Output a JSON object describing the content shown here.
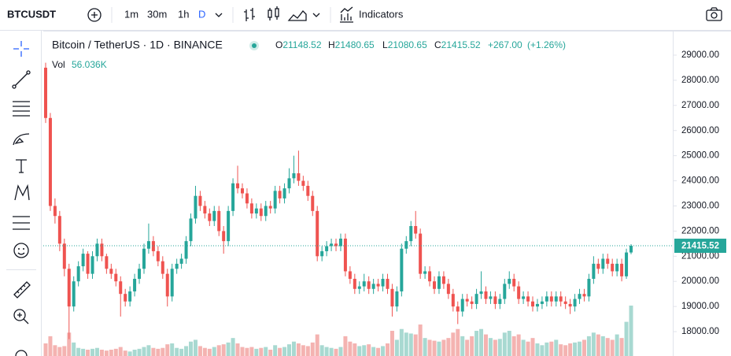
{
  "toolbar": {
    "symbol": "BTCUSDT",
    "intervals": [
      "1m",
      "30m",
      "1h",
      "D"
    ],
    "indicators": "Indicators"
  },
  "chart_data": {
    "type": "candlestick",
    "title": "Bitcoin / TetherUS · 1D · BINANCE",
    "legend_labels": {
      "open": "O",
      "high": "H",
      "low": "L",
      "close": "C"
    },
    "change": {
      "value": 267,
      "label": "+267.00"
    },
    "change_pct": {
      "value": 1.26,
      "label": "(+1.26%)"
    },
    "volume_title": "Vol",
    "volume_readout": "56.036K",
    "up_color": "#26a69a",
    "down_color": "#ef5350",
    "volume_up_color": "#a8d9d1",
    "volume_down_color": "#f4b3b1",
    "ylim": [
      17030,
      29940
    ],
    "yticks": [
      {
        "value": 18000,
        "label": "18000.00"
      },
      {
        "value": 19000,
        "label": "19000.00"
      },
      {
        "value": 20000,
        "label": "20000.00"
      },
      {
        "value": 21000,
        "label": "21000.00"
      },
      {
        "value": 22000,
        "label": "22000.00"
      },
      {
        "value": 23000,
        "label": "23000.00"
      },
      {
        "value": 24000,
        "label": "24000.00"
      },
      {
        "value": 25000,
        "label": "25000.00"
      },
      {
        "value": 26000,
        "label": "26000.00"
      },
      {
        "value": 27000,
        "label": "27000.00"
      },
      {
        "value": 28000,
        "label": "28000.00"
      },
      {
        "value": 29000,
        "label": "29000.00"
      }
    ],
    "ohlc": [
      [
        28500,
        28700,
        26300,
        26500
      ],
      [
        26500,
        26700,
        22800,
        23000
      ],
      [
        23000,
        23300,
        22300,
        22600
      ],
      [
        22600,
        22800,
        21200,
        21500
      ],
      [
        21500,
        21700,
        20200,
        20500
      ],
      [
        20500,
        20700,
        17700,
        19000
      ],
      [
        19000,
        20200,
        18800,
        20000
      ],
      [
        20000,
        20800,
        19800,
        20600
      ],
      [
        20600,
        21300,
        20400,
        21100
      ],
      [
        21100,
        21200,
        20100,
        20300
      ],
      [
        20300,
        21200,
        20100,
        21000
      ],
      [
        21000,
        21700,
        20800,
        21500
      ],
      [
        21500,
        21700,
        20800,
        21000
      ],
      [
        21000,
        21100,
        20300,
        20500
      ],
      [
        20500,
        20700,
        20100,
        20300
      ],
      [
        20300,
        20500,
        19800,
        20000
      ],
      [
        20000,
        20200,
        18600,
        19500
      ],
      [
        19500,
        19700,
        19000,
        19200
      ],
      [
        19200,
        19800,
        19000,
        19600
      ],
      [
        19600,
        20300,
        19400,
        20100
      ],
      [
        20100,
        20700,
        19900,
        20500
      ],
      [
        20500,
        21500,
        20300,
        21300
      ],
      [
        21300,
        22300,
        21100,
        21600
      ],
      [
        21600,
        21800,
        21000,
        21200
      ],
      [
        21200,
        21400,
        20600,
        20800
      ],
      [
        20800,
        21000,
        20100,
        20300
      ],
      [
        20300,
        20500,
        19000,
        19400
      ],
      [
        19400,
        20700,
        19200,
        20500
      ],
      [
        20500,
        20900,
        20300,
        20700
      ],
      [
        20700,
        21100,
        20500,
        20900
      ],
      [
        20900,
        21800,
        20700,
        21600
      ],
      [
        21600,
        22700,
        21400,
        22500
      ],
      [
        22500,
        23800,
        22300,
        23400
      ],
      [
        23400,
        23600,
        22800,
        23000
      ],
      [
        23000,
        23200,
        22500,
        22700
      ],
      [
        22700,
        22900,
        22200,
        22400
      ],
      [
        22400,
        23000,
        22200,
        22800
      ],
      [
        22800,
        23000,
        21800,
        22000
      ],
      [
        22000,
        22200,
        21100,
        21600
      ],
      [
        21600,
        23000,
        21400,
        22800
      ],
      [
        22800,
        24100,
        22600,
        23900
      ],
      [
        23900,
        24600,
        23500,
        23700
      ],
      [
        23700,
        23900,
        23300,
        23500
      ],
      [
        23500,
        23700,
        22900,
        23100
      ],
      [
        23100,
        23300,
        22500,
        22700
      ],
      [
        22700,
        23100,
        22500,
        22900
      ],
      [
        22900,
        23100,
        22400,
        22600
      ],
      [
        22600,
        23200,
        22400,
        23000
      ],
      [
        23000,
        23200,
        22700,
        22900
      ],
      [
        22900,
        23800,
        22700,
        23600
      ],
      [
        23600,
        23800,
        23100,
        23300
      ],
      [
        23300,
        23900,
        23100,
        23700
      ],
      [
        23700,
        24500,
        23500,
        24100
      ],
      [
        24100,
        25000,
        23900,
        24300
      ],
      [
        24300,
        25200,
        23800,
        24000
      ],
      [
        24000,
        24200,
        23600,
        23800
      ],
      [
        23800,
        24000,
        23200,
        23400
      ],
      [
        23400,
        23600,
        22600,
        22800
      ],
      [
        22800,
        23000,
        20800,
        21000
      ],
      [
        21000,
        21400,
        20800,
        21200
      ],
      [
        21200,
        21600,
        21000,
        21400
      ],
      [
        21400,
        21700,
        21200,
        21500
      ],
      [
        21500,
        21700,
        21200,
        21400
      ],
      [
        21400,
        21900,
        21200,
        21700
      ],
      [
        21700,
        21900,
        20200,
        20400
      ],
      [
        20400,
        20600,
        19900,
        20100
      ],
      [
        20100,
        20300,
        19500,
        19700
      ],
      [
        19700,
        20000,
        19500,
        19800
      ],
      [
        19800,
        20300,
        19600,
        20000
      ],
      [
        20000,
        20200,
        19500,
        19700
      ],
      [
        19700,
        20100,
        19500,
        19900
      ],
      [
        19900,
        20100,
        19600,
        19800
      ],
      [
        19800,
        20300,
        19600,
        20100
      ],
      [
        20100,
        20300,
        19500,
        19700
      ],
      [
        19700,
        19900,
        18600,
        19000
      ],
      [
        19000,
        19800,
        18800,
        19600
      ],
      [
        19600,
        21500,
        19400,
        21300
      ],
      [
        21300,
        21800,
        21100,
        21600
      ],
      [
        21600,
        22400,
        21400,
        22200
      ],
      [
        22200,
        22800,
        21700,
        21900
      ],
      [
        21900,
        22100,
        20100,
        20300
      ],
      [
        20300,
        20600,
        20100,
        20400
      ],
      [
        20400,
        20600,
        19800,
        20000
      ],
      [
        20000,
        20200,
        19500,
        19700
      ],
      [
        19700,
        20400,
        19500,
        20200
      ],
      [
        20200,
        20400,
        19700,
        19900
      ],
      [
        19900,
        20100,
        19300,
        19500
      ],
      [
        19500,
        19700,
        18800,
        19000
      ],
      [
        19000,
        19200,
        18300,
        18800
      ],
      [
        18800,
        19500,
        18600,
        19300
      ],
      [
        19300,
        19500,
        19000,
        19200
      ],
      [
        19200,
        19400,
        18900,
        19100
      ],
      [
        19100,
        19700,
        18900,
        19500
      ],
      [
        19500,
        20400,
        19300,
        19600
      ],
      [
        19600,
        19800,
        19100,
        19300
      ],
      [
        19300,
        19600,
        19100,
        19400
      ],
      [
        19400,
        19600,
        18900,
        19100
      ],
      [
        19100,
        19500,
        18900,
        19300
      ],
      [
        19300,
        20100,
        19100,
        19900
      ],
      [
        19900,
        20400,
        19700,
        20100
      ],
      [
        20100,
        20300,
        19600,
        19800
      ],
      [
        19800,
        20000,
        19100,
        19300
      ],
      [
        19300,
        19600,
        19100,
        19400
      ],
      [
        19400,
        19600,
        19000,
        19200
      ],
      [
        19200,
        19400,
        18800,
        19000
      ],
      [
        19000,
        19300,
        18800,
        19100
      ],
      [
        19100,
        19400,
        18900,
        19200
      ],
      [
        19200,
        19600,
        19000,
        19400
      ],
      [
        19400,
        19600,
        19000,
        19200
      ],
      [
        19200,
        19600,
        19000,
        19400
      ],
      [
        19400,
        19600,
        19000,
        19200
      ],
      [
        19200,
        19400,
        18900,
        19100
      ],
      [
        19100,
        19300,
        18700,
        19000
      ],
      [
        19000,
        19500,
        18800,
        19300
      ],
      [
        19300,
        19700,
        19100,
        19500
      ],
      [
        19500,
        19700,
        19200,
        19400
      ],
      [
        19400,
        20300,
        19200,
        20100
      ],
      [
        20100,
        21000,
        19900,
        20700
      ],
      [
        20700,
        20900,
        20300,
        20500
      ],
      [
        20500,
        21100,
        20300,
        20900
      ],
      [
        20900,
        21100,
        20500,
        20700
      ],
      [
        20700,
        20900,
        20200,
        20400
      ],
      [
        20400,
        20900,
        20200,
        20700
      ],
      [
        20700,
        20900,
        20000,
        20200
      ],
      [
        20200,
        21300,
        20100,
        21148.52
      ],
      [
        21148.52,
        21480.65,
        21080.65,
        21415.52
      ]
    ],
    "volume": [
      14000,
      22000,
      12000,
      10000,
      11000,
      26000,
      15000,
      9000,
      8000,
      7000,
      8000,
      9000,
      7000,
      6000,
      7000,
      8000,
      10000,
      6000,
      5000,
      7000,
      8000,
      10000,
      12000,
      9000,
      8000,
      9000,
      13000,
      14000,
      9000,
      8000,
      11000,
      16000,
      18000,
      11000,
      9000,
      8000,
      10000,
      12000,
      13000,
      15000,
      20000,
      14000,
      10000,
      9000,
      10000,
      8000,
      9000,
      10000,
      7000,
      12000,
      9000,
      10000,
      13000,
      16000,
      14000,
      12000,
      11000,
      15000,
      24000,
      12000,
      10000,
      9000,
      8000,
      10000,
      22000,
      16000,
      14000,
      11000,
      12000,
      13000,
      10000,
      9000,
      11000,
      14000,
      28000,
      18000,
      30000,
      26000,
      25000,
      24000,
      35000,
      20000,
      18000,
      17000,
      16000,
      18000,
      20000,
      26000,
      30000,
      22000,
      18000,
      22000,
      28000,
      30000,
      24000,
      20000,
      18000,
      19000,
      26000,
      28000,
      22000,
      24000,
      18000,
      16000,
      20000,
      14000,
      12000,
      15000,
      16000,
      18000,
      13000,
      12000,
      14000,
      15000,
      16000,
      18000,
      22000,
      26000,
      24000,
      22000,
      20000,
      18000,
      24000,
      20000,
      38000,
      56036
    ]
  }
}
